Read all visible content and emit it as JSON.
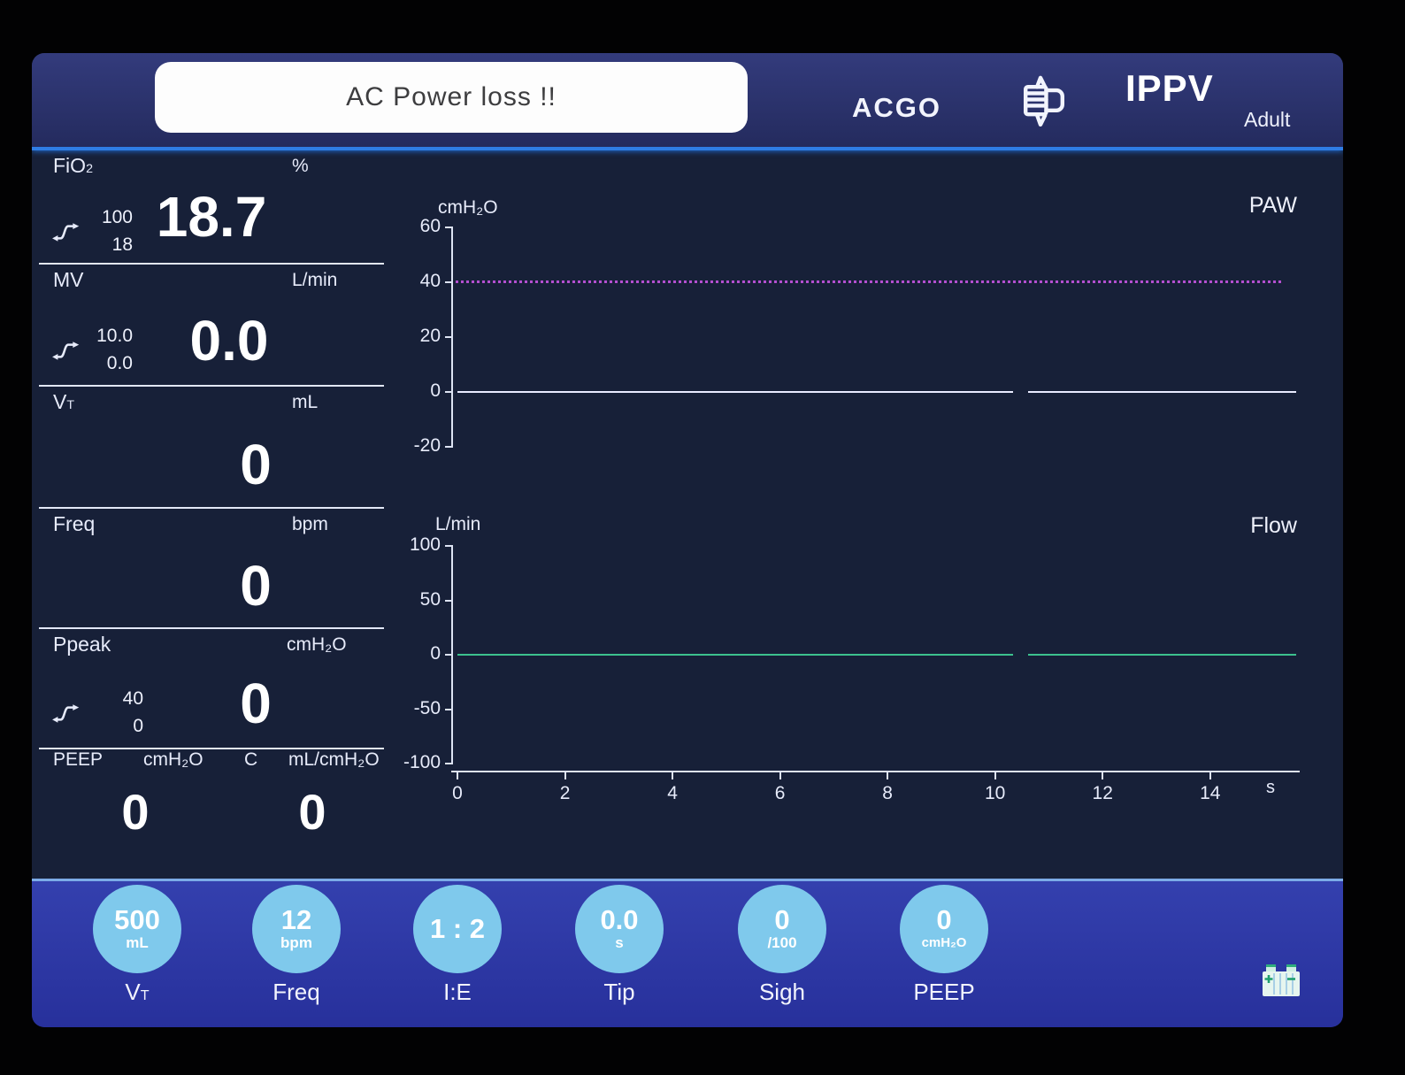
{
  "top_bar": {
    "alarm_message": "AC Power loss !!",
    "acgo_label": "ACGO",
    "mode": "IPPV",
    "patient_type": "Adult"
  },
  "monitored": {
    "fio2": {
      "label": "FiO",
      "label_sub": "2",
      "unit": "%",
      "value": "18.7",
      "limit_high": "100",
      "limit_low": "18"
    },
    "mv": {
      "label": "MV",
      "label_sub": "",
      "unit": "L/min",
      "value": "0.0",
      "limit_high": "10.0",
      "limit_low": "0.0"
    },
    "vt": {
      "label": "V",
      "label_sub": "T",
      "unit": "mL",
      "value": "0"
    },
    "freq": {
      "label": "Freq",
      "label_sub": "",
      "unit": "bpm",
      "value": "0"
    },
    "ppeak": {
      "label": "Ppeak",
      "label_sub": "",
      "unit": "cmH₂O",
      "value": "0",
      "limit_high": "40",
      "limit_low": "0"
    },
    "peep": {
      "label": "PEEP",
      "unit": "cmH₂O",
      "value": "0"
    },
    "compliance": {
      "label": "C",
      "unit": "mL/cmH₂O",
      "value": "0"
    }
  },
  "chart_data": [
    {
      "type": "line",
      "title": "PAW",
      "ylabel": "cmH₂O",
      "ylim": [
        -20,
        60
      ],
      "yticks": [
        60,
        40,
        20,
        0,
        -20
      ],
      "x_range_s": [
        0,
        15.6
      ],
      "grid": false,
      "legend_position": "top-right",
      "series": [
        {
          "name": "Paw",
          "color": "#e9ebff",
          "constant_y": 0,
          "gap_s": [
            10.33,
            10.61
          ]
        }
      ],
      "alarm_limit": {
        "y": 40,
        "style": "dotted",
        "color": "#b44fd0"
      }
    },
    {
      "type": "line",
      "title": "Flow",
      "ylabel": "L/min",
      "ylim": [
        -100,
        100
      ],
      "yticks": [
        100,
        50,
        0,
        -50,
        -100
      ],
      "xticks": [
        0,
        2,
        4,
        6,
        8,
        10,
        12,
        14
      ],
      "xlabel": "s",
      "x_range_s": [
        0,
        15.6
      ],
      "grid": false,
      "legend_position": "top-right",
      "series": [
        {
          "name": "Flow",
          "color": "#3cc18e",
          "constant_y": 0,
          "gap_s": [
            10.33,
            10.61
          ]
        }
      ]
    }
  ],
  "settings": [
    {
      "id": "vt",
      "value": "500",
      "unit": "mL",
      "label": "V",
      "label_sub": "T"
    },
    {
      "id": "freq",
      "value": "12",
      "unit": "bpm",
      "label": "Freq",
      "label_sub": ""
    },
    {
      "id": "ie",
      "value": "1 : 2",
      "unit": "",
      "label": "I:E",
      "label_sub": ""
    },
    {
      "id": "tip",
      "value": "0.0",
      "unit": "s",
      "label": "Tip",
      "label_sub": ""
    },
    {
      "id": "sigh",
      "value": "0",
      "unit": "/100",
      "label": "Sigh",
      "label_sub": ""
    },
    {
      "id": "peep",
      "value": "0",
      "unit": "cmH₂O",
      "label": "PEEP",
      "label_sub": ""
    }
  ],
  "icons": {
    "manual_ventilation": "manual-ventilation-icon",
    "alarm_limits": "alarm-limits-icon",
    "battery": "battery-icon"
  },
  "colors": {
    "screen_bg": "#172038",
    "top_bar_bg": "#2a3270",
    "bottom_bar_bg": "#2c37a4",
    "accent_line": "#2f7de5",
    "setting_button_fill": "#7fc9ec",
    "paw_trace": "#e9ebff",
    "flow_trace": "#3cc18e",
    "alarm_limit_line": "#b44fd0",
    "alarm_box_bg": "#fdfdfd",
    "text": "#eef1fc"
  }
}
